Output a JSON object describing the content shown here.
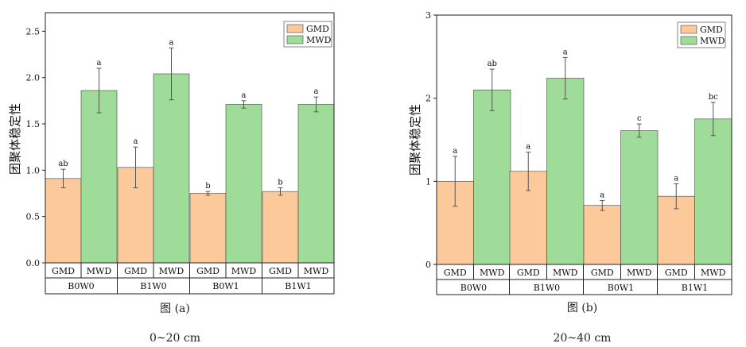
{
  "colors": {
    "gmd": "#fcc99b",
    "mwd": "#9fdc9a",
    "axis": "#222222",
    "error": "#555555"
  },
  "legend": {
    "gmd": "GMD",
    "mwd": "MWD"
  },
  "captions": [
    {
      "figure": "图 (a)",
      "depth": "0~20 cm"
    },
    {
      "figure": "图 (b)",
      "depth": "20~40 cm"
    }
  ],
  "chart_data": [
    {
      "type": "bar",
      "ylabel": "团聚体稳定性",
      "ylim": [
        0,
        2.7
      ],
      "yticks": [
        "0.0",
        "0.5",
        "1.0",
        "1.5",
        "2.0",
        "2.5"
      ],
      "ytick_values": [
        0,
        0.5,
        1.0,
        1.5,
        2.0,
        2.5
      ],
      "grid": false,
      "legend_position": "top-right",
      "categories": [
        "B0W0",
        "B1W0",
        "B0W1",
        "B1W1"
      ],
      "sub_labels": [
        "GMD",
        "MWD"
      ],
      "series": [
        {
          "name": "GMD",
          "values": [
            0.91,
            1.03,
            0.75,
            0.77
          ],
          "errors": [
            0.1,
            0.22,
            0.02,
            0.04
          ],
          "letters": [
            "ab",
            "a",
            "b",
            "b"
          ]
        },
        {
          "name": "MWD",
          "values": [
            1.86,
            2.04,
            1.71,
            1.71
          ],
          "errors": [
            0.24,
            0.28,
            0.04,
            0.08
          ],
          "letters": [
            "a",
            "a",
            "a",
            "a"
          ]
        }
      ]
    },
    {
      "type": "bar",
      "ylabel": "团聚体稳定性",
      "ylim": [
        0,
        3
      ],
      "yticks": [
        "0",
        "1",
        "2",
        "3"
      ],
      "ytick_values": [
        0,
        1,
        2,
        3
      ],
      "grid": false,
      "legend_position": "top-right",
      "categories": [
        "B0W0",
        "B1W0",
        "B0W1",
        "B1W1"
      ],
      "sub_labels": [
        "GMD",
        "MWD"
      ],
      "series": [
        {
          "name": "GMD",
          "values": [
            1.0,
            1.12,
            0.71,
            0.82
          ],
          "errors": [
            0.3,
            0.23,
            0.06,
            0.15
          ],
          "letters": [
            "a",
            "a",
            "a",
            "a"
          ]
        },
        {
          "name": "MWD",
          "values": [
            2.1,
            2.24,
            1.61,
            1.75
          ],
          "errors": [
            0.25,
            0.25,
            0.08,
            0.2
          ],
          "letters": [
            "ab",
            "a",
            "c",
            "bc"
          ]
        }
      ]
    }
  ]
}
